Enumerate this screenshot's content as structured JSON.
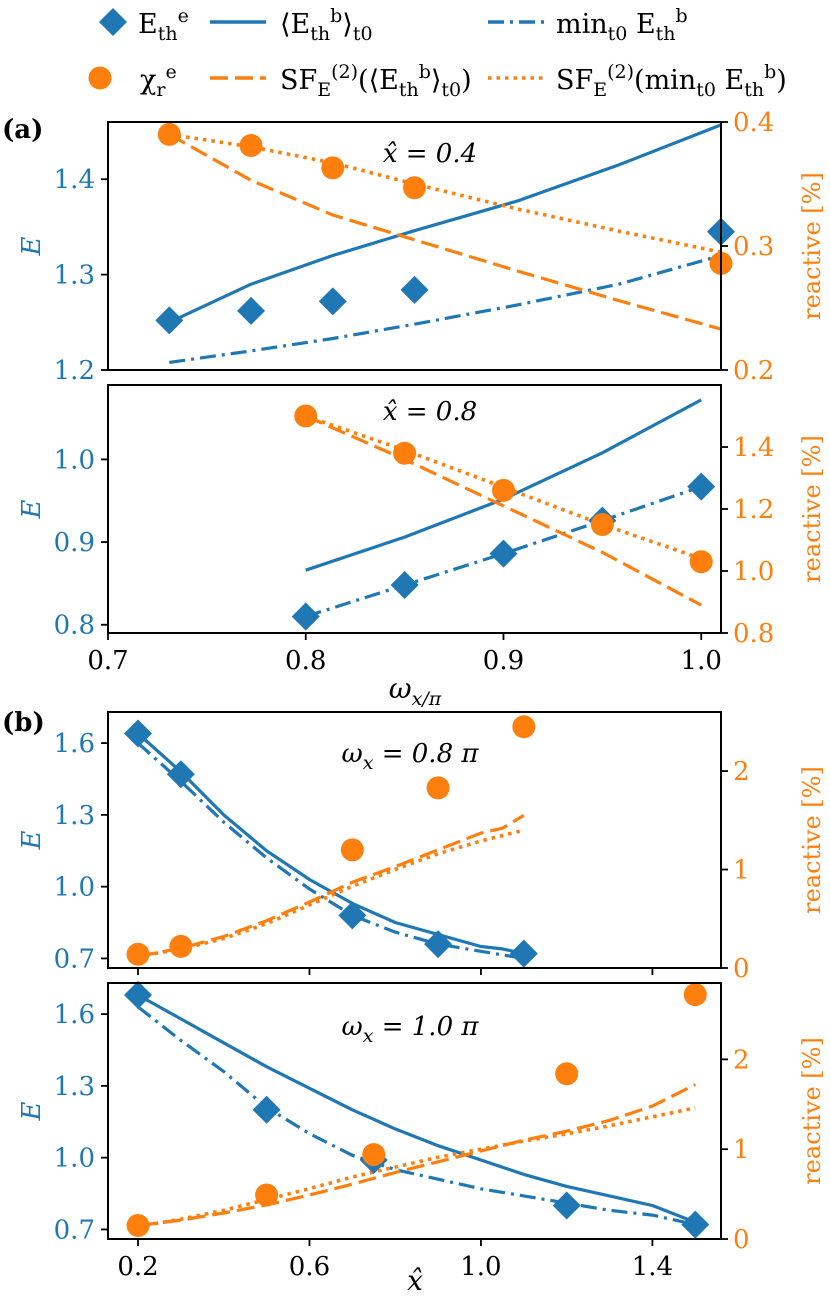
{
  "colors": {
    "blue": "#1f77b4",
    "orange": "#ff7f0e",
    "axis": "#000000"
  },
  "legend": {
    "items": [
      {
        "label": "E_th^e",
        "name": "legend-diamond-eth-e"
      },
      {
        "label": "⟨E_th^b⟩_t0",
        "name": "legend-solid-mean"
      },
      {
        "label": "min_t0 E_th^b",
        "name": "legend-dashdot-min"
      },
      {
        "label": "χ_r^e",
        "name": "legend-circle-chi"
      },
      {
        "label": "SF_E^(2)(⟨E_th^b⟩_t0)",
        "name": "legend-dashed-sf-mean"
      },
      {
        "label": "SF_E^(2)(min_t0 E_th^b)",
        "name": "legend-dotted-sf-min"
      }
    ]
  },
  "panel_labels": {
    "a": "(a)",
    "b": "(b)"
  },
  "chart_data": [
    {
      "type": "line",
      "id": "a1",
      "panel": "(a)",
      "annotation": "x̂ = 0.4",
      "xlim": [
        0.7,
        1.0
      ],
      "ylim": [
        1.2,
        1.46
      ],
      "ylabel": "E",
      "yticks": [
        1.2,
        1.3,
        1.4
      ],
      "y2lim": [
        0.2,
        0.4
      ],
      "y2label": "reactive [%]",
      "y2ticks": [
        0.2,
        0.3,
        0.4
      ],
      "xticks": [],
      "xticklabels": [],
      "xlabel": "",
      "series": [
        {
          "name": "⟨E_th^b⟩_t0",
          "style": "solid",
          "color": "blue",
          "axis": "left",
          "x": [
            0.73,
            0.77,
            0.81,
            0.85,
            0.9,
            0.95,
            1.0
          ],
          "y": [
            1.25,
            1.29,
            1.32,
            1.346,
            1.377,
            1.415,
            1.457
          ]
        },
        {
          "name": "min_t0 E_th^b",
          "style": "dashdot",
          "color": "blue",
          "axis": "left",
          "x": [
            0.73,
            0.77,
            0.81,
            0.85,
            0.9,
            0.95,
            1.0
          ],
          "y": [
            1.208,
            1.22,
            1.233,
            1.248,
            1.268,
            1.29,
            1.32
          ]
        },
        {
          "name": "E_th^e",
          "style": "diamond",
          "color": "blue",
          "axis": "left",
          "x": [
            0.73,
            0.77,
            0.81,
            0.85,
            1.0
          ],
          "y": [
            1.252,
            1.262,
            1.272,
            1.284,
            1.345
          ]
        },
        {
          "name": "SF_E^(2)(⟨E_th^b⟩_t0)",
          "style": "dashed",
          "color": "orange",
          "axis": "right",
          "x": [
            0.73,
            0.77,
            0.81,
            0.85,
            0.9,
            0.95,
            1.0
          ],
          "y": [
            0.39,
            0.353,
            0.325,
            0.305,
            0.28,
            0.256,
            0.233
          ]
        },
        {
          "name": "SF_E^(2)(min_t0 E_th^b)",
          "style": "dotted",
          "color": "orange",
          "axis": "right",
          "x": [
            0.73,
            0.77,
            0.81,
            0.85,
            0.9,
            0.95,
            1.0
          ],
          "y": [
            0.39,
            0.38,
            0.367,
            0.35,
            0.33,
            0.312,
            0.295
          ]
        },
        {
          "name": "χ_r^e",
          "style": "circle",
          "color": "orange",
          "axis": "right",
          "x": [
            0.73,
            0.77,
            0.81,
            0.85,
            1.0
          ],
          "y": [
            0.39,
            0.381,
            0.363,
            0.347,
            0.286
          ]
        }
      ]
    },
    {
      "type": "line",
      "id": "a2",
      "panel": "(a)",
      "annotation": "x̂ = 0.8",
      "xlim": [
        0.7,
        1.01
      ],
      "ylim": [
        0.79,
        1.09
      ],
      "ylabel": "E",
      "yticks": [
        0.8,
        0.9,
        1.0
      ],
      "y2lim": [
        0.8,
        1.6
      ],
      "y2label": "reactive [%]",
      "y2ticks": [
        0.8,
        1.0,
        1.2,
        1.4
      ],
      "xticks": [
        0.7,
        0.8,
        0.9,
        1.0
      ],
      "xticklabels": [
        "0.7",
        "0.8",
        "0.9",
        "1.0"
      ],
      "xlabel": "ω_x/π",
      "series": [
        {
          "name": "⟨E_th^b⟩_t0",
          "style": "solid",
          "color": "blue",
          "axis": "left",
          "x": [
            0.8,
            0.85,
            0.9,
            0.95,
            1.0
          ],
          "y": [
            0.866,
            0.906,
            0.952,
            1.008,
            1.072
          ]
        },
        {
          "name": "min_t0 E_th^b",
          "style": "dashdot",
          "color": "blue",
          "axis": "left",
          "x": [
            0.8,
            0.85,
            0.9,
            0.95,
            1.0
          ],
          "y": [
            0.81,
            0.848,
            0.886,
            0.926,
            0.967
          ]
        },
        {
          "name": "E_th^e",
          "style": "diamond",
          "color": "blue",
          "axis": "left",
          "x": [
            0.8,
            0.85,
            0.9,
            0.95,
            1.0
          ],
          "y": [
            0.81,
            0.848,
            0.886,
            0.926,
            0.967
          ]
        },
        {
          "name": "SF_E^(2)(⟨E_th^b⟩_t0)",
          "style": "dashed",
          "color": "orange",
          "axis": "right",
          "x": [
            0.8,
            0.85,
            0.9,
            0.95,
            1.0
          ],
          "y": [
            1.5,
            1.36,
            1.21,
            1.06,
            0.89
          ]
        },
        {
          "name": "SF_E^(2)(min_t0 E_th^b)",
          "style": "dotted",
          "color": "orange",
          "axis": "right",
          "x": [
            0.8,
            0.85,
            0.9,
            0.95,
            1.0
          ],
          "y": [
            1.5,
            1.39,
            1.27,
            1.15,
            1.04
          ]
        },
        {
          "name": "χ_r^e",
          "style": "circle",
          "color": "orange",
          "axis": "right",
          "x": [
            0.8,
            0.85,
            0.9,
            0.95,
            1.0
          ],
          "y": [
            1.5,
            1.38,
            1.26,
            1.15,
            1.03
          ]
        }
      ]
    },
    {
      "type": "line",
      "id": "b1",
      "panel": "(b)",
      "annotation": "ω_x = 0.8 π",
      "xlim": [
        0.13,
        1.56
      ],
      "ylim": [
        0.66,
        1.73
      ],
      "ylabel": "E",
      "yticks": [
        0.7,
        1.0,
        1.3,
        1.6
      ],
      "y2lim": [
        0,
        2.6
      ],
      "y2label": "reactive [%]",
      "y2ticks": [
        0,
        1,
        2
      ],
      "xticks": [
        0.2,
        0.6,
        1.0,
        1.4
      ],
      "xticklabels": [],
      "xlabel": "",
      "series": [
        {
          "name": "⟨E_th^b⟩_t0",
          "style": "solid",
          "color": "blue",
          "axis": "left",
          "x": [
            0.2,
            0.3,
            0.4,
            0.5,
            0.6,
            0.7,
            0.8,
            0.9,
            1.0,
            1.05,
            1.1
          ],
          "y": [
            1.64,
            1.48,
            1.3,
            1.15,
            1.03,
            0.93,
            0.85,
            0.8,
            0.75,
            0.74,
            0.72
          ]
        },
        {
          "name": "min_t0 E_th^b",
          "style": "dashdot",
          "color": "blue",
          "axis": "left",
          "x": [
            0.2,
            0.3,
            0.4,
            0.5,
            0.6,
            0.7,
            0.8,
            0.9,
            1.0,
            1.1
          ],
          "y": [
            1.6,
            1.44,
            1.27,
            1.12,
            0.99,
            0.88,
            0.81,
            0.76,
            0.73,
            0.7
          ]
        },
        {
          "name": "E_th^e",
          "style": "diamond",
          "color": "blue",
          "axis": "left",
          "x": [
            0.2,
            0.3,
            0.7,
            0.9,
            1.1
          ],
          "y": [
            1.64,
            1.47,
            0.88,
            0.76,
            0.72
          ]
        },
        {
          "name": "SF_E^(2)(⟨E_th^b⟩_t0)",
          "style": "dashed",
          "color": "orange",
          "axis": "right",
          "x": [
            0.2,
            0.3,
            0.4,
            0.5,
            0.6,
            0.7,
            0.8,
            0.9,
            1.0,
            1.05,
            1.1
          ],
          "y": [
            0.12,
            0.2,
            0.32,
            0.48,
            0.67,
            0.87,
            1.03,
            1.2,
            1.37,
            1.42,
            1.55
          ]
        },
        {
          "name": "SF_E^(2)(min_t0 E_th^b)",
          "style": "dotted",
          "color": "orange",
          "axis": "right",
          "x": [
            0.2,
            0.3,
            0.4,
            0.5,
            0.6,
            0.7,
            0.8,
            0.9,
            1.0,
            1.1
          ],
          "y": [
            0.12,
            0.19,
            0.3,
            0.45,
            0.64,
            0.83,
            1.0,
            1.16,
            1.29,
            1.4
          ]
        },
        {
          "name": "χ_r^e",
          "style": "circle",
          "color": "orange",
          "axis": "right",
          "x": [
            0.2,
            0.3,
            0.7,
            0.9,
            1.1
          ],
          "y": [
            0.14,
            0.22,
            1.2,
            1.83,
            2.45
          ]
        }
      ]
    },
    {
      "type": "line",
      "id": "b2",
      "panel": "(b)",
      "annotation": "ω_x = 1.0 π",
      "xlim": [
        0.13,
        1.56
      ],
      "ylim": [
        0.66,
        1.73
      ],
      "ylabel": "E",
      "yticks": [
        0.7,
        1.0,
        1.3,
        1.6
      ],
      "y2lim": [
        0,
        2.85
      ],
      "y2label": "reactive [%]",
      "y2ticks": [
        0,
        1,
        2
      ],
      "xticks": [
        0.2,
        0.6,
        1.0,
        1.4
      ],
      "xticklabels": [
        "0.2",
        "0.6",
        "1.0",
        "1.4"
      ],
      "xlabel": "x̂",
      "series": [
        {
          "name": "⟨E_th^b⟩_t0",
          "style": "solid",
          "color": "blue",
          "axis": "left",
          "x": [
            0.2,
            0.3,
            0.4,
            0.5,
            0.6,
            0.7,
            0.8,
            0.9,
            1.0,
            1.1,
            1.2,
            1.3,
            1.4,
            1.5
          ],
          "y": [
            1.68,
            1.58,
            1.48,
            1.38,
            1.29,
            1.2,
            1.12,
            1.05,
            0.99,
            0.93,
            0.88,
            0.84,
            0.8,
            0.73
          ]
        },
        {
          "name": "min_t0 E_th^b",
          "style": "dashdot",
          "color": "blue",
          "axis": "left",
          "x": [
            0.2,
            0.3,
            0.4,
            0.5,
            0.6,
            0.7,
            0.8,
            0.9,
            1.0,
            1.1,
            1.2,
            1.3,
            1.4,
            1.5
          ],
          "y": [
            1.63,
            1.49,
            1.36,
            1.21,
            1.1,
            1.01,
            0.95,
            0.91,
            0.87,
            0.84,
            0.81,
            0.78,
            0.76,
            0.72
          ]
        },
        {
          "name": "E_th^e",
          "style": "diamond",
          "color": "blue",
          "axis": "left",
          "x": [
            0.2,
            0.5,
            0.75,
            1.2,
            1.5
          ],
          "y": [
            1.68,
            1.2,
            0.99,
            0.8,
            0.72
          ]
        },
        {
          "name": "SF_E^(2)(⟨E_th^b⟩_t0)",
          "style": "dashed",
          "color": "orange",
          "axis": "right",
          "x": [
            0.2,
            0.3,
            0.4,
            0.5,
            0.6,
            0.7,
            0.8,
            0.9,
            1.0,
            1.1,
            1.2,
            1.3,
            1.4,
            1.5
          ],
          "y": [
            0.15,
            0.21,
            0.29,
            0.38,
            0.49,
            0.61,
            0.74,
            0.86,
            0.98,
            1.1,
            1.2,
            1.32,
            1.48,
            1.72
          ]
        },
        {
          "name": "SF_E^(2)(min_t0 E_th^b)",
          "style": "dotted",
          "color": "orange",
          "axis": "right",
          "x": [
            0.2,
            0.3,
            0.4,
            0.5,
            0.6,
            0.7,
            0.8,
            0.9,
            1.0,
            1.1,
            1.2,
            1.3,
            1.4,
            1.5
          ],
          "y": [
            0.14,
            0.22,
            0.32,
            0.44,
            0.56,
            0.69,
            0.8,
            0.91,
            1.0,
            1.09,
            1.17,
            1.26,
            1.36,
            1.46
          ]
        },
        {
          "name": "χ_r^e",
          "style": "circle",
          "color": "orange",
          "axis": "right",
          "x": [
            0.2,
            0.5,
            0.75,
            1.2,
            1.5
          ],
          "y": [
            0.15,
            0.49,
            0.94,
            1.84,
            2.72
          ]
        }
      ]
    }
  ]
}
